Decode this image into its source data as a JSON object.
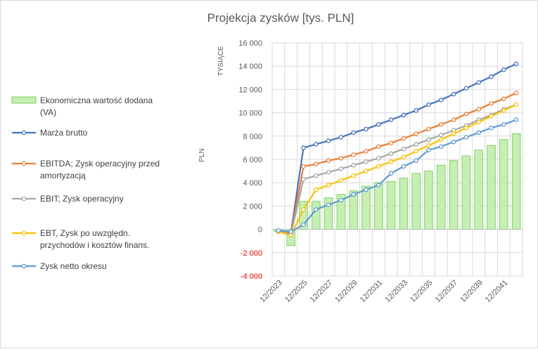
{
  "chart_data": {
    "type": "line",
    "title": "Projekcja zysków [tys. PLN]",
    "ylabel": "PLN",
    "y_unit_label": "TYSIĄCE",
    "ylim": [
      -4000,
      16000
    ],
    "y_ticks": [
      -4000,
      -2000,
      0,
      2000,
      4000,
      6000,
      8000,
      10000,
      12000,
      14000,
      16000
    ],
    "y_tick_labels": [
      "-4 000",
      "-2 000",
      "0",
      "2 000",
      "4 000",
      "6 000",
      "8 000",
      "10 000",
      "12 000",
      "14 000",
      "16 000"
    ],
    "x_tick_labels": [
      "12/2023",
      "12/2025",
      "12/2027",
      "12/2029",
      "12/2031",
      "12/2033",
      "12/2035",
      "12/2037",
      "12/2039",
      "12/2041"
    ],
    "grid": true,
    "legend_position": "left",
    "categories": [
      "12/2023",
      "12/2024",
      "12/2025",
      "12/2026",
      "12/2027",
      "12/2028",
      "12/2029",
      "12/2030",
      "12/2031",
      "12/2032",
      "12/2033",
      "12/2034",
      "12/2035",
      "12/2036",
      "12/2037",
      "12/2038",
      "12/2039",
      "12/2040",
      "12/2041",
      "12/2042"
    ],
    "series": [
      {
        "name": "Ekonomiczna wartość dodana (VA)",
        "kind": "bar",
        "color": "#7fd35f",
        "fill": "#c6efb4",
        "values": [
          -200,
          -1400,
          2400,
          2400,
          2700,
          3000,
          3300,
          3700,
          4000,
          4100,
          4400,
          4800,
          5000,
          5500,
          5900,
          6300,
          6800,
          7200,
          7700,
          8200
        ]
      },
      {
        "name": "Marża brutto",
        "kind": "line",
        "color": "#4472c4",
        "values": [
          -200,
          -300,
          7000,
          7300,
          7600,
          7900,
          8300,
          8600,
          9000,
          9400,
          9800,
          10200,
          10700,
          11100,
          11600,
          12100,
          12600,
          13100,
          13700,
          14200
        ]
      },
      {
        "name": "EBITDA; Zysk operacyjny przed amortyzacją",
        "kind": "line",
        "color": "#ed7d31",
        "values": [
          -200,
          -350,
          5400,
          5600,
          5900,
          6100,
          6400,
          6700,
          7100,
          7400,
          7800,
          8200,
          8600,
          9000,
          9400,
          9900,
          10300,
          10800,
          11200,
          11700
        ]
      },
      {
        "name": "EBIT; Zysk operacyjny",
        "kind": "line",
        "color": "#a5a5a5",
        "values": [
          -200,
          -400,
          4300,
          4600,
          4900,
          5200,
          5500,
          5800,
          6100,
          6500,
          6900,
          7300,
          7700,
          8100,
          8500,
          8900,
          9400,
          9800,
          10300,
          10700
        ]
      },
      {
        "name": "EBT, Zysk po uwzględn. przychodów i kosztów finans.",
        "kind": "line",
        "color": "#ffc000",
        "values": [
          -200,
          -500,
          1700,
          3400,
          3800,
          4200,
          4600,
          5000,
          5400,
          5800,
          6200,
          6700,
          7200,
          7700,
          8200,
          8700,
          9200,
          9700,
          10200,
          10700
        ]
      },
      {
        "name": "Zysk netto okresu",
        "kind": "line",
        "color": "#5b9bd5",
        "values": [
          -100,
          -200,
          400,
          1700,
          2100,
          2500,
          3000,
          3400,
          3800,
          4800,
          5400,
          5900,
          6800,
          7100,
          7500,
          7900,
          8300,
          8700,
          9000,
          9400
        ]
      }
    ]
  },
  "legend_lines": [
    [
      "Ekonomiczna wartość dodana",
      "(VA)"
    ],
    [
      "Marża brutto"
    ],
    [
      "EBITDA; Zysk operacyjny przed",
      "amortyzacją"
    ],
    [
      "EBIT; Zysk operacyjny"
    ],
    [
      "EBT, Zysk po uwzględn.",
      "przychodów i kosztów finans."
    ],
    [
      "Zysk netto okresu"
    ]
  ],
  "colors": {
    "tick_positive": "#595959",
    "tick_negative": "#ff0000",
    "grid": "#d9d9d9"
  }
}
